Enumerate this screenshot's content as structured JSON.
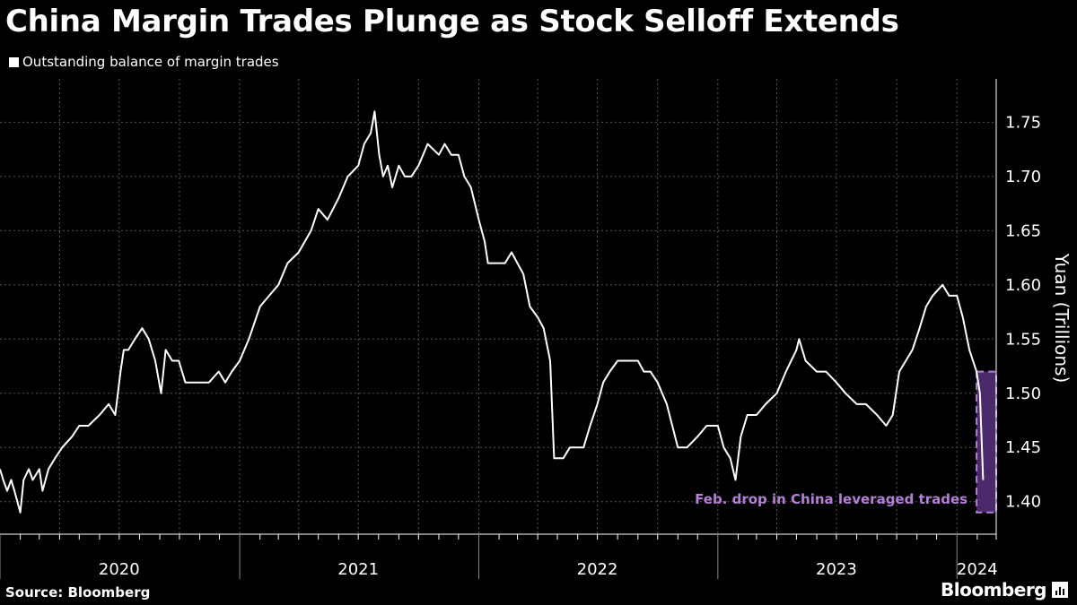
{
  "header": {
    "title": "China Margin Trades Plunge as Stock Selloff Extends",
    "legend_label": "Outstanding balance of margin trades"
  },
  "footer": {
    "source": "Source: Bloomberg",
    "brand": "Bloomberg"
  },
  "colors": {
    "background": "#000000",
    "line": "#ffffff",
    "highlight_fill": "#4a2a6a",
    "highlight_border": "#b57fd6",
    "annotation": "#b57fd6",
    "grid": "#555555"
  },
  "chart_data": {
    "type": "line",
    "title": "China Margin Trades Plunge as Stock Selloff Extends",
    "ylabel": "Yuan (Trillions)",
    "xlabel": "",
    "ylim": [
      1.37,
      1.79
    ],
    "xlim": [
      "2020-01-01",
      "2024-03-01"
    ],
    "y_ticks": [
      1.4,
      1.45,
      1.5,
      1.55,
      1.6,
      1.65,
      1.7,
      1.75
    ],
    "y_tick_labels": [
      "1.40",
      "1.45",
      "1.50",
      "1.55",
      "1.60",
      "1.65",
      "1.70",
      "1.75"
    ],
    "x_year_labels": [
      {
        "label": "2020",
        "date": "2020-07-01"
      },
      {
        "label": "2021",
        "date": "2021-07-01"
      },
      {
        "label": "2022",
        "date": "2022-07-01"
      },
      {
        "label": "2023",
        "date": "2023-07-01"
      },
      {
        "label": "2024",
        "date": "2024-02-01"
      }
    ],
    "grid": true,
    "y_axis_side": "right",
    "legend_position": "top-left",
    "series": [
      {
        "name": "Outstanding balance of margin trades",
        "points": [
          [
            "2020-01-01",
            1.43
          ],
          [
            "2020-01-06",
            1.42
          ],
          [
            "2020-01-12",
            1.41
          ],
          [
            "2020-01-18",
            1.42
          ],
          [
            "2020-01-23",
            1.41
          ],
          [
            "2020-02-01",
            1.39
          ],
          [
            "2020-02-06",
            1.42
          ],
          [
            "2020-02-14",
            1.43
          ],
          [
            "2020-02-20",
            1.42
          ],
          [
            "2020-03-01",
            1.43
          ],
          [
            "2020-03-06",
            1.41
          ],
          [
            "2020-03-15",
            1.43
          ],
          [
            "2020-03-25",
            1.44
          ],
          [
            "2020-04-05",
            1.45
          ],
          [
            "2020-04-20",
            1.46
          ],
          [
            "2020-05-01",
            1.47
          ],
          [
            "2020-05-15",
            1.47
          ],
          [
            "2020-06-01",
            1.48
          ],
          [
            "2020-06-15",
            1.49
          ],
          [
            "2020-06-25",
            1.48
          ],
          [
            "2020-07-03",
            1.52
          ],
          [
            "2020-07-08",
            1.54
          ],
          [
            "2020-07-15",
            1.54
          ],
          [
            "2020-07-25",
            1.55
          ],
          [
            "2020-08-05",
            1.56
          ],
          [
            "2020-08-15",
            1.55
          ],
          [
            "2020-08-25",
            1.53
          ],
          [
            "2020-09-03",
            1.5
          ],
          [
            "2020-09-10",
            1.54
          ],
          [
            "2020-09-20",
            1.53
          ],
          [
            "2020-09-30",
            1.53
          ],
          [
            "2020-10-10",
            1.51
          ],
          [
            "2020-10-20",
            1.51
          ],
          [
            "2020-11-01",
            1.51
          ],
          [
            "2020-11-15",
            1.51
          ],
          [
            "2020-11-30",
            1.52
          ],
          [
            "2020-12-10",
            1.51
          ],
          [
            "2020-12-20",
            1.52
          ],
          [
            "2021-01-01",
            1.53
          ],
          [
            "2021-01-15",
            1.55
          ],
          [
            "2021-02-01",
            1.58
          ],
          [
            "2021-02-15",
            1.59
          ],
          [
            "2021-03-01",
            1.6
          ],
          [
            "2021-03-15",
            1.62
          ],
          [
            "2021-04-01",
            1.63
          ],
          [
            "2021-04-20",
            1.65
          ],
          [
            "2021-05-01",
            1.67
          ],
          [
            "2021-05-15",
            1.66
          ],
          [
            "2021-06-01",
            1.68
          ],
          [
            "2021-06-15",
            1.7
          ],
          [
            "2021-07-01",
            1.71
          ],
          [
            "2021-07-10",
            1.73
          ],
          [
            "2021-07-20",
            1.74
          ],
          [
            "2021-07-26",
            1.76
          ],
          [
            "2021-08-02",
            1.72
          ],
          [
            "2021-08-08",
            1.7
          ],
          [
            "2021-08-15",
            1.71
          ],
          [
            "2021-08-22",
            1.69
          ],
          [
            "2021-09-01",
            1.71
          ],
          [
            "2021-09-10",
            1.7
          ],
          [
            "2021-09-20",
            1.7
          ],
          [
            "2021-10-01",
            1.71
          ],
          [
            "2021-10-15",
            1.73
          ],
          [
            "2021-11-01",
            1.72
          ],
          [
            "2021-11-10",
            1.73
          ],
          [
            "2021-11-20",
            1.72
          ],
          [
            "2021-12-01",
            1.72
          ],
          [
            "2021-12-10",
            1.7
          ],
          [
            "2021-12-20",
            1.69
          ],
          [
            "2022-01-01",
            1.66
          ],
          [
            "2022-01-10",
            1.64
          ],
          [
            "2022-01-15",
            1.62
          ],
          [
            "2022-02-01",
            1.62
          ],
          [
            "2022-02-10",
            1.62
          ],
          [
            "2022-02-20",
            1.63
          ],
          [
            "2022-03-01",
            1.62
          ],
          [
            "2022-03-10",
            1.61
          ],
          [
            "2022-03-20",
            1.58
          ],
          [
            "2022-04-01",
            1.57
          ],
          [
            "2022-04-10",
            1.56
          ],
          [
            "2022-04-20",
            1.53
          ],
          [
            "2022-04-26",
            1.44
          ],
          [
            "2022-05-10",
            1.44
          ],
          [
            "2022-05-20",
            1.45
          ],
          [
            "2022-06-01",
            1.45
          ],
          [
            "2022-06-10",
            1.45
          ],
          [
            "2022-06-20",
            1.47
          ],
          [
            "2022-07-01",
            1.49
          ],
          [
            "2022-07-10",
            1.51
          ],
          [
            "2022-07-20",
            1.52
          ],
          [
            "2022-08-01",
            1.53
          ],
          [
            "2022-08-15",
            1.53
          ],
          [
            "2022-09-01",
            1.53
          ],
          [
            "2022-09-10",
            1.52
          ],
          [
            "2022-09-20",
            1.52
          ],
          [
            "2022-10-01",
            1.51
          ],
          [
            "2022-10-15",
            1.49
          ],
          [
            "2022-11-01",
            1.45
          ],
          [
            "2022-11-15",
            1.45
          ],
          [
            "2022-12-01",
            1.46
          ],
          [
            "2022-12-15",
            1.47
          ],
          [
            "2023-01-01",
            1.47
          ],
          [
            "2023-01-10",
            1.45
          ],
          [
            "2023-01-20",
            1.44
          ],
          [
            "2023-01-28",
            1.42
          ],
          [
            "2023-02-05",
            1.46
          ],
          [
            "2023-02-15",
            1.48
          ],
          [
            "2023-03-01",
            1.48
          ],
          [
            "2023-03-15",
            1.49
          ],
          [
            "2023-04-01",
            1.5
          ],
          [
            "2023-04-15",
            1.52
          ],
          [
            "2023-05-01",
            1.54
          ],
          [
            "2023-05-05",
            1.55
          ],
          [
            "2023-05-15",
            1.53
          ],
          [
            "2023-06-01",
            1.52
          ],
          [
            "2023-06-15",
            1.52
          ],
          [
            "2023-07-01",
            1.51
          ],
          [
            "2023-07-15",
            1.5
          ],
          [
            "2023-08-01",
            1.49
          ],
          [
            "2023-08-15",
            1.49
          ],
          [
            "2023-09-01",
            1.48
          ],
          [
            "2023-09-15",
            1.47
          ],
          [
            "2023-09-25",
            1.48
          ],
          [
            "2023-10-05",
            1.52
          ],
          [
            "2023-10-15",
            1.53
          ],
          [
            "2023-10-25",
            1.54
          ],
          [
            "2023-11-05",
            1.56
          ],
          [
            "2023-11-15",
            1.58
          ],
          [
            "2023-11-25",
            1.59
          ],
          [
            "2023-12-10",
            1.6
          ],
          [
            "2023-12-20",
            1.59
          ],
          [
            "2024-01-01",
            1.59
          ],
          [
            "2024-01-10",
            1.57
          ],
          [
            "2024-01-20",
            1.54
          ],
          [
            "2024-01-31",
            1.52
          ],
          [
            "2024-02-05",
            1.5
          ],
          [
            "2024-02-10",
            1.42
          ]
        ]
      }
    ],
    "highlight": {
      "x_start": "2024-01-31",
      "x_end": "2024-03-01",
      "y_low": 1.39,
      "y_high": 1.52,
      "label": "Feb. drop in China leveraged trades"
    }
  }
}
